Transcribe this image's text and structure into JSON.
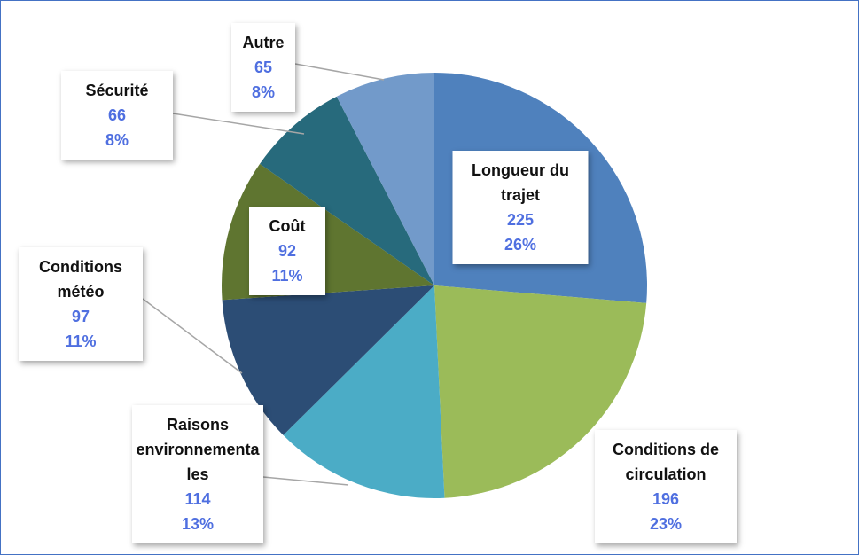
{
  "chart_data": {
    "type": "pie",
    "categories": [
      "Longueur du trajet",
      "Conditions de circulation",
      "Raisons environnementales",
      "Conditions météo",
      "Coût",
      "Sécurité",
      "Autre"
    ],
    "values": [
      225,
      196,
      114,
      97,
      92,
      66,
      65
    ],
    "percent_labels": [
      "26%",
      "23%",
      "13%",
      "11%",
      "11%",
      "8%",
      "8%"
    ],
    "colors": [
      "#4f81bd",
      "#9bbb59",
      "#4bacc6",
      "#2c4d75",
      "#5f7530",
      "#276a7c",
      "#729aca"
    ]
  }
}
